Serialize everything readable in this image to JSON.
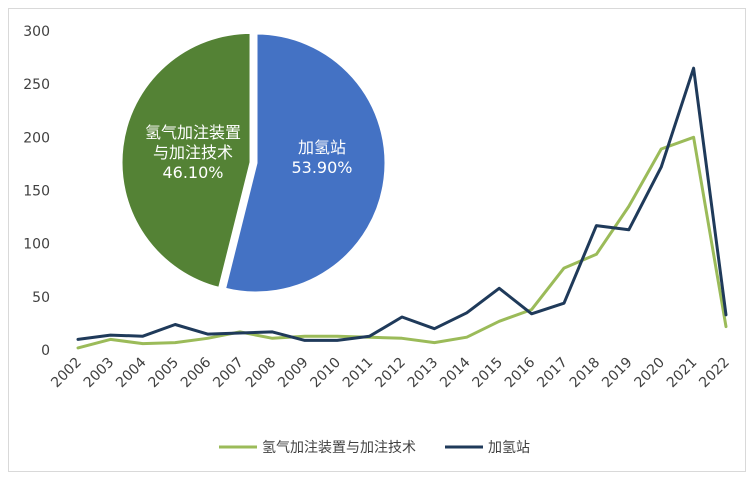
{
  "chart_data": [
    {
      "type": "line",
      "title": "",
      "xlabel": "",
      "ylabel": "",
      "ylim": [
        0,
        300
      ],
      "yticks": [
        0,
        50,
        100,
        150,
        200,
        250,
        300
      ],
      "grid": false,
      "legend_position": "bottom",
      "x": [
        "2002",
        "2003",
        "2004",
        "2005",
        "2006",
        "2007",
        "2008",
        "2009",
        "2010",
        "2011",
        "2012",
        "2013",
        "2014",
        "2015",
        "2016",
        "2017",
        "2018",
        "2019",
        "2020",
        "2021",
        "2022"
      ],
      "series": [
        {
          "name": "氢气加注装置与加注技术",
          "color": "#9bbb59",
          "values": [
            2,
            10,
            6,
            7,
            11,
            17,
            11,
            13,
            13,
            12,
            11,
            7,
            12,
            27,
            38,
            77,
            90,
            135,
            189,
            200,
            22
          ]
        },
        {
          "name": "加氢站",
          "color": "#1f3a5a",
          "values": [
            10,
            14,
            13,
            24,
            15,
            16,
            17,
            9,
            9,
            13,
            31,
            20,
            35,
            58,
            34,
            44,
            117,
            113,
            172,
            265,
            33
          ]
        }
      ]
    },
    {
      "type": "pie",
      "slices": [
        {
          "label_line1": "加氢站",
          "label_line2": "",
          "pct_text": "53.90%",
          "value": 53.9,
          "color": "#4472c4"
        },
        {
          "label_line1": "氢气加注装置",
          "label_line2": "与加注技术",
          "pct_text": "46.10%",
          "value": 46.1,
          "color": "#548235"
        }
      ]
    }
  ]
}
